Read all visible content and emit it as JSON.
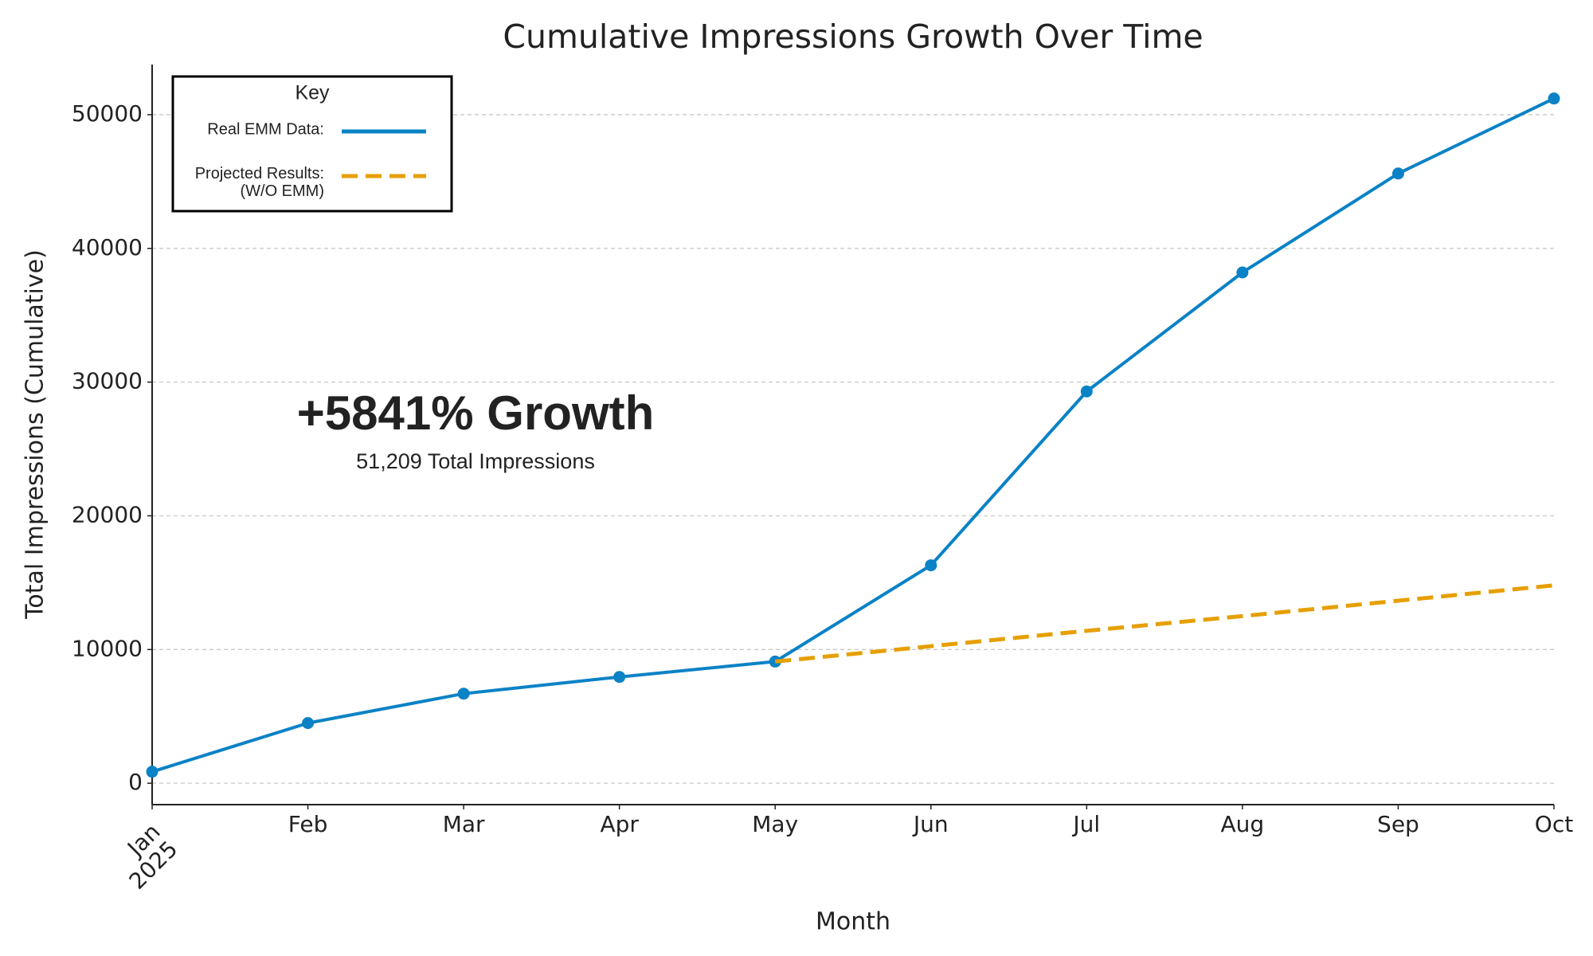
{
  "chart_data": {
    "type": "line",
    "title": "Cumulative Impressions Growth Over Time",
    "x_label": "Month",
    "y_label": "Total Impressions (Cumulative)",
    "categories": [
      "Jan\n2025",
      "Feb",
      "Mar",
      "Apr",
      "May",
      "Jun",
      "Jul",
      "Aug",
      "Sep",
      "Oct"
    ],
    "series": [
      {
        "name": "Real EMM Data:",
        "color": "#0a82c6",
        "style": "solid",
        "markers": true,
        "values": [
          862,
          4500,
          6700,
          7950,
          9100,
          16300,
          29300,
          38200,
          45600,
          51209
        ]
      },
      {
        "name": "Projected Results:\n(W/O EMM)",
        "color": "#e69f00",
        "style": "dashed",
        "markers": false,
        "values": [
          null,
          null,
          null,
          null,
          9100,
          10250,
          11400,
          12500,
          13650,
          14800
        ]
      }
    ],
    "ylim": [
      -1600,
      53750
    ],
    "yticks": [
      0,
      10000,
      20000,
      30000,
      40000,
      50000
    ],
    "grid": true,
    "legend": {
      "title": "Key",
      "position": "upper left"
    },
    "annotations": [
      {
        "text": "+5841% Growth"
      },
      {
        "text": "51,209 Total Impressions"
      }
    ]
  }
}
